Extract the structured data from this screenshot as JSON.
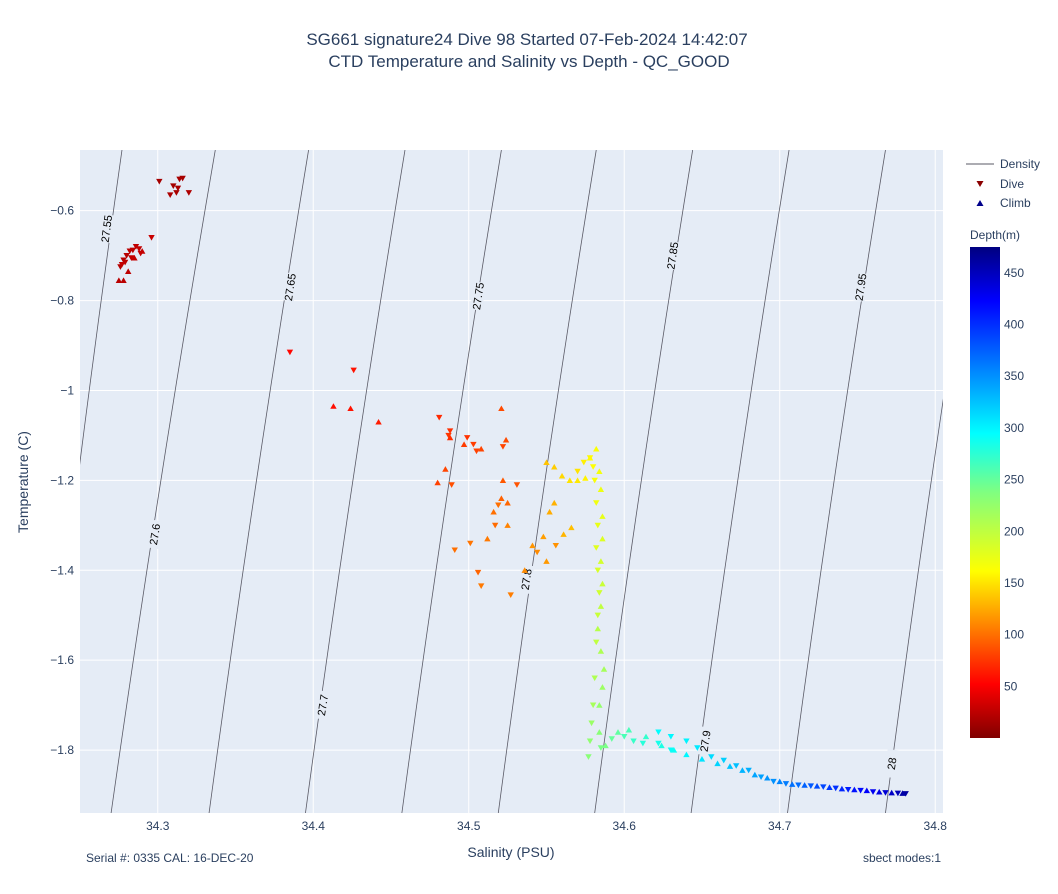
{
  "title_line1": "SG661 signature24 Dive 98 Started 07-Feb-2024 14:42:07",
  "title_line2": "CTD Temperature and Salinity vs Depth - QC_GOOD",
  "footer_left": "Serial #: 0335  CAL: 16-DEC-20",
  "footer_right": "sbect modes:1",
  "colors": {
    "plot_bg": "#e5ecf6",
    "grid": "#ffffff",
    "density_line": "#5a5a66",
    "dive_marker": "#8b0000",
    "climb_marker": "#00008b"
  },
  "chart_data": {
    "type": "scatter",
    "xlabel": "Salinity (PSU)",
    "ylabel": "Temperature (C)",
    "xlim": [
      34.25,
      34.805
    ],
    "ylim": [
      -1.94,
      -0.465
    ],
    "x_ticks": [
      "34.3",
      "34.4",
      "34.5",
      "34.6",
      "34.7",
      "34.8"
    ],
    "y_ticks": [
      "−0.6",
      "−0.8",
      "−1",
      "−1.2",
      "−1.4",
      "−1.6",
      "−1.8"
    ],
    "grid": true,
    "legend_placement": "right",
    "legend": [
      "Density",
      "Dive",
      "Climb"
    ],
    "colorbar": {
      "title": "Depth(m)",
      "range": [
        0,
        475
      ],
      "ticks": [
        "50",
        "100",
        "150",
        "200",
        "250",
        "300",
        "350",
        "400",
        "450"
      ],
      "colorscale": "jet"
    },
    "density_contours": [
      {
        "label": "27.55",
        "top_s": 34.277,
        "bottom_s": 34.223,
        "label_s": 34.267,
        "label_t": -0.64
      },
      {
        "label": "27.6",
        "top_s": 34.337,
        "bottom_s": 34.27,
        "label_s": 34.298,
        "label_t": -1.32
      },
      {
        "label": "27.65",
        "top_s": 34.397,
        "bottom_s": 34.333,
        "label_s": 34.385,
        "label_t": -0.77
      },
      {
        "label": "27.7",
        "top_s": 34.459,
        "bottom_s": 34.395,
        "label_s": 34.406,
        "label_t": -1.7
      },
      {
        "label": "27.75",
        "top_s": 34.521,
        "bottom_s": 34.457,
        "label_s": 34.506,
        "label_t": -0.79
      },
      {
        "label": "27.8",
        "top_s": 34.582,
        "bottom_s": 34.519,
        "label_s": 34.537,
        "label_t": -1.42
      },
      {
        "label": "27.85",
        "top_s": 34.644,
        "bottom_s": 34.581,
        "label_s": 34.631,
        "label_t": -0.7
      },
      {
        "label": "27.9",
        "top_s": 34.706,
        "bottom_s": 34.643,
        "label_s": 34.652,
        "label_t": -1.78
      },
      {
        "label": "27.95",
        "top_s": 34.768,
        "bottom_s": 34.705,
        "label_s": 34.752,
        "label_t": -0.77
      },
      {
        "label": "28",
        "top_s": 34.83,
        "bottom_s": 34.768,
        "label_s": 34.772,
        "label_t": -1.83
      }
    ],
    "series": [
      {
        "name": "Dive",
        "marker": "triangle-down",
        "points": [
          [
            34.301,
            -0.535,
            15
          ],
          [
            34.31,
            -0.545,
            15
          ],
          [
            34.314,
            -0.53,
            16
          ],
          [
            34.316,
            -0.528,
            16
          ],
          [
            34.312,
            -0.56,
            17
          ],
          [
            34.308,
            -0.565,
            18
          ],
          [
            34.32,
            -0.56,
            19
          ],
          [
            34.313,
            -0.55,
            17
          ],
          [
            34.276,
            -0.725,
            22
          ],
          [
            34.278,
            -0.71,
            22
          ],
          [
            34.28,
            -0.7,
            23
          ],
          [
            34.282,
            -0.69,
            24
          ],
          [
            34.279,
            -0.715,
            25
          ],
          [
            34.284,
            -0.688,
            25
          ],
          [
            34.286,
            -0.68,
            26
          ],
          [
            34.288,
            -0.685,
            27
          ],
          [
            34.277,
            -0.72,
            27
          ],
          [
            34.283,
            -0.705,
            28
          ],
          [
            34.289,
            -0.695,
            28
          ],
          [
            34.296,
            -0.66,
            30
          ],
          [
            34.385,
            -0.915,
            55
          ],
          [
            34.426,
            -0.955,
            60
          ],
          [
            34.481,
            -1.06,
            70
          ],
          [
            34.488,
            -1.09,
            72
          ],
          [
            34.499,
            -1.105,
            74
          ],
          [
            34.487,
            -1.1,
            76
          ],
          [
            34.503,
            -1.12,
            78
          ],
          [
            34.505,
            -1.135,
            80
          ],
          [
            34.522,
            -1.125,
            82
          ],
          [
            34.489,
            -1.21,
            86
          ],
          [
            34.531,
            -1.21,
            88
          ],
          [
            34.506,
            -1.405,
            95
          ],
          [
            34.517,
            -1.3,
            98
          ],
          [
            34.519,
            -1.255,
            100
          ],
          [
            34.491,
            -1.355,
            100
          ],
          [
            34.501,
            -1.34,
            102
          ],
          [
            34.508,
            -1.435,
            104
          ],
          [
            34.527,
            -1.455,
            106
          ],
          [
            34.544,
            -1.36,
            112
          ],
          [
            34.556,
            -1.345,
            115
          ],
          [
            34.57,
            -1.18,
            150
          ],
          [
            34.574,
            -1.16,
            155
          ],
          [
            34.578,
            -1.15,
            160
          ],
          [
            34.58,
            -1.17,
            162
          ],
          [
            34.581,
            -1.2,
            165
          ],
          [
            34.582,
            -1.25,
            170
          ],
          [
            34.583,
            -1.3,
            175
          ],
          [
            34.582,
            -1.35,
            180
          ],
          [
            34.583,
            -1.4,
            185
          ],
          [
            34.584,
            -1.45,
            190
          ],
          [
            34.583,
            -1.5,
            195
          ],
          [
            34.582,
            -1.56,
            200
          ],
          [
            34.581,
            -1.64,
            210
          ],
          [
            34.58,
            -1.7,
            215
          ],
          [
            34.579,
            -1.74,
            222
          ],
          [
            34.578,
            -1.78,
            228
          ],
          [
            34.577,
            -1.815,
            232
          ],
          [
            34.585,
            -1.795,
            240
          ],
          [
            34.592,
            -1.775,
            250
          ],
          [
            34.6,
            -1.77,
            262
          ],
          [
            34.606,
            -1.78,
            270
          ],
          [
            34.612,
            -1.785,
            278
          ],
          [
            34.622,
            -1.785,
            285
          ],
          [
            34.63,
            -1.8,
            292
          ],
          [
            34.622,
            -1.76,
            295
          ],
          [
            34.63,
            -1.77,
            298
          ],
          [
            34.64,
            -1.78,
            300
          ],
          [
            34.647,
            -1.795,
            305
          ],
          [
            34.656,
            -1.815,
            312
          ],
          [
            34.664,
            -1.823,
            318
          ],
          [
            34.672,
            -1.835,
            326
          ],
          [
            34.68,
            -1.845,
            334
          ],
          [
            34.688,
            -1.86,
            342
          ],
          [
            34.696,
            -1.87,
            350
          ],
          [
            34.704,
            -1.875,
            360
          ],
          [
            34.712,
            -1.878,
            368
          ],
          [
            34.72,
            -1.88,
            378
          ],
          [
            34.728,
            -1.882,
            388
          ],
          [
            34.736,
            -1.885,
            398
          ],
          [
            34.744,
            -1.888,
            408
          ],
          [
            34.752,
            -1.89,
            418
          ],
          [
            34.76,
            -1.893,
            428
          ],
          [
            34.768,
            -1.895,
            440
          ],
          [
            34.776,
            -1.896,
            452
          ],
          [
            34.781,
            -1.897,
            462
          ]
        ]
      },
      {
        "name": "Climb",
        "marker": "triangle-up",
        "points": [
          [
            34.275,
            -0.755,
            24
          ],
          [
            34.278,
            -0.755,
            24
          ],
          [
            34.281,
            -0.735,
            25
          ],
          [
            34.285,
            -0.705,
            27
          ],
          [
            34.29,
            -0.69,
            28
          ],
          [
            34.413,
            -1.035,
            58
          ],
          [
            34.424,
            -1.04,
            60
          ],
          [
            34.442,
            -1.07,
            64
          ],
          [
            34.488,
            -1.105,
            72
          ],
          [
            34.48,
            -1.205,
            80
          ],
          [
            34.485,
            -1.175,
            82
          ],
          [
            34.497,
            -1.12,
            78
          ],
          [
            34.508,
            -1.13,
            82
          ],
          [
            34.521,
            -1.04,
            84
          ],
          [
            34.524,
            -1.11,
            84
          ],
          [
            34.522,
            -1.2,
            90
          ],
          [
            34.521,
            -1.24,
            94
          ],
          [
            34.525,
            -1.25,
            96
          ],
          [
            34.516,
            -1.27,
            100
          ],
          [
            34.512,
            -1.33,
            104
          ],
          [
            34.525,
            -1.3,
            108
          ],
          [
            34.536,
            -1.4,
            112
          ],
          [
            34.541,
            -1.345,
            116
          ],
          [
            34.548,
            -1.325,
            120
          ],
          [
            34.55,
            -1.38,
            118
          ],
          [
            34.552,
            -1.27,
            126
          ],
          [
            34.555,
            -1.25,
            128
          ],
          [
            34.561,
            -1.32,
            130
          ],
          [
            34.566,
            -1.305,
            134
          ],
          [
            34.55,
            -1.16,
            136
          ],
          [
            34.555,
            -1.17,
            140
          ],
          [
            34.56,
            -1.19,
            145
          ],
          [
            34.565,
            -1.2,
            150
          ],
          [
            34.57,
            -1.2,
            152
          ],
          [
            34.575,
            -1.195,
            156
          ],
          [
            34.578,
            -1.15,
            160
          ],
          [
            34.582,
            -1.13,
            164
          ],
          [
            34.584,
            -1.18,
            168
          ],
          [
            34.585,
            -1.22,
            172
          ],
          [
            34.586,
            -1.28,
            176
          ],
          [
            34.586,
            -1.33,
            182
          ],
          [
            34.585,
            -1.38,
            188
          ],
          [
            34.586,
            -1.43,
            194
          ],
          [
            34.585,
            -1.48,
            200
          ],
          [
            34.583,
            -1.53,
            205
          ],
          [
            34.585,
            -1.58,
            210
          ],
          [
            34.587,
            -1.62,
            215
          ],
          [
            34.586,
            -1.66,
            220
          ],
          [
            34.584,
            -1.7,
            225
          ],
          [
            34.584,
            -1.76,
            232
          ],
          [
            34.588,
            -1.79,
            240
          ],
          [
            34.596,
            -1.76,
            252
          ],
          [
            34.603,
            -1.755,
            262
          ],
          [
            34.614,
            -1.77,
            272
          ],
          [
            34.624,
            -1.79,
            282
          ],
          [
            34.632,
            -1.8,
            290
          ],
          [
            34.64,
            -1.81,
            298
          ],
          [
            34.65,
            -1.82,
            308
          ],
          [
            34.66,
            -1.83,
            316
          ],
          [
            34.668,
            -1.836,
            324
          ],
          [
            34.676,
            -1.845,
            332
          ],
          [
            34.684,
            -1.855,
            340
          ],
          [
            34.692,
            -1.862,
            348
          ],
          [
            34.7,
            -1.87,
            356
          ],
          [
            34.708,
            -1.876,
            366
          ],
          [
            34.716,
            -1.878,
            374
          ],
          [
            34.724,
            -1.88,
            384
          ],
          [
            34.732,
            -1.883,
            394
          ],
          [
            34.74,
            -1.886,
            404
          ],
          [
            34.748,
            -1.888,
            414
          ],
          [
            34.756,
            -1.89,
            424
          ],
          [
            34.764,
            -1.893,
            434
          ],
          [
            34.772,
            -1.895,
            446
          ],
          [
            34.779,
            -1.896,
            458
          ]
        ]
      }
    ]
  }
}
